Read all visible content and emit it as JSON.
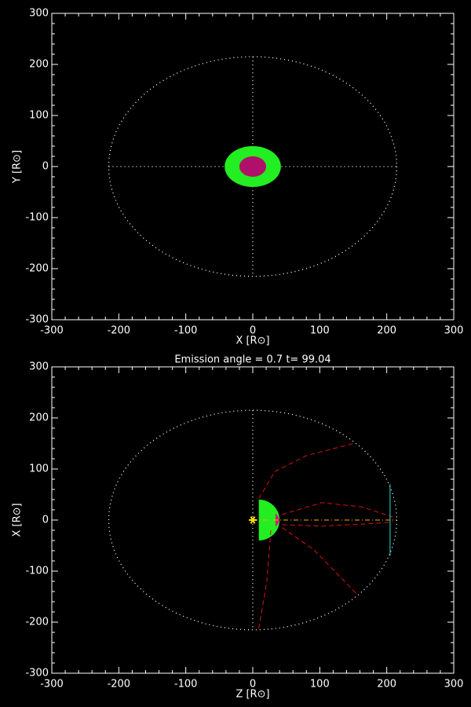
{
  "chart_data": [
    {
      "type": "scatter",
      "xlabel": "X [R⊙]",
      "ylabel": "Y [R⊙]",
      "xlim": [
        -300,
        300
      ],
      "ylim": [
        -300,
        300
      ],
      "xticks": [
        -300,
        -200,
        -100,
        0,
        100,
        200,
        300
      ],
      "yticks": [
        -300,
        -200,
        -100,
        0,
        100,
        200,
        300
      ],
      "orbit_radius": 215,
      "crosshair": true,
      "cloud": {
        "rx": 42,
        "ry": 40,
        "color": "#22ee22"
      },
      "core": {
        "rx": 20,
        "ry": 20,
        "color": "#b0106a"
      }
    },
    {
      "type": "scatter",
      "title": "Emission angle =    0.7  t=   99.04",
      "xlabel": "Z [R⊙]",
      "ylabel": "X [R⊙]",
      "xlim": [
        -300,
        300
      ],
      "ylim": [
        -300,
        300
      ],
      "xticks": [
        -300,
        -200,
        -100,
        0,
        100,
        200,
        300
      ],
      "yticks": [
        -300,
        -200,
        -100,
        0,
        100,
        200,
        300
      ],
      "orbit_radius": 215,
      "shell": {
        "x0": 9,
        "x1": 40,
        "half_height": 40,
        "color": "#22ee22"
      },
      "cap": {
        "x0": 34,
        "x1": 40,
        "half_height": 13,
        "color": "#dd1177"
      },
      "field_lines": {
        "color": "#dd1111",
        "lines": [
          {
            "x": [
              9,
              33,
              80,
              150
            ],
            "y": [
              42,
              95,
              126,
              150
            ]
          },
          {
            "x": [
              44,
              103,
              162,
              209
            ],
            "y": [
              11,
              34,
              26,
              6
            ]
          },
          {
            "x": [
              44,
              103,
              162,
              209
            ],
            "y": [
              -9,
              -12,
              -8,
              -4
            ]
          },
          {
            "x": [
              27,
              21,
              9
            ],
            "y": [
              -20,
              -120,
              -212
            ]
          },
          {
            "x": [
              44,
              91,
              126,
              156
            ],
            "y": [
              -15,
              -58,
              -105,
              -146
            ]
          }
        ]
      },
      "axis_line": {
        "x": [
          0,
          215
        ],
        "y": [
          0,
          0
        ],
        "color": "#ffaa00"
      },
      "detector": {
        "x": [
          205,
          205
        ],
        "y": [
          -70,
          70
        ],
        "color": "#22ddcc"
      },
      "source": {
        "x": 0,
        "y": 0,
        "color": "#ffdd00"
      }
    }
  ]
}
